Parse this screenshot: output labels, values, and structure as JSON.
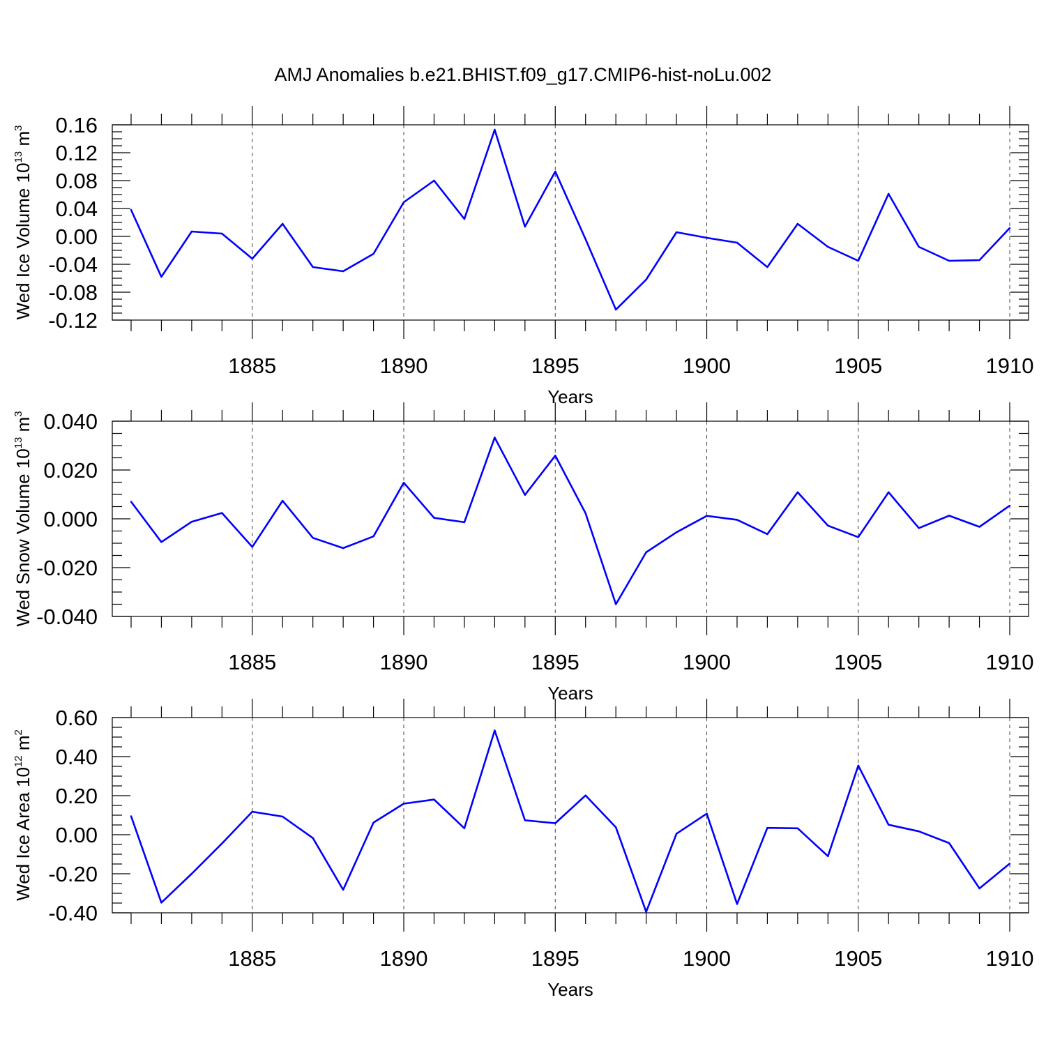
{
  "title": "AMJ Anomalies b.e21.BHIST.f09_g17.CMIP6-hist-noLu.002",
  "colors": {
    "line": "#0000ff",
    "axis": "#000000",
    "grid": "#444444"
  },
  "chart_data": [
    {
      "type": "line",
      "title": "AMJ Anomalies b.e21.BHIST.f09_g17.CMIP6-hist-noLu.002",
      "xlabel": "Years",
      "ylabel": "Wed Ice Volume 10",
      "ylabel_exponent": "13",
      "ylabel_unit": "m",
      "ylabel_unit_exponent": "3",
      "xlim": [
        1881,
        1910
      ],
      "ylim": [
        -0.12,
        0.16
      ],
      "x_ticks": [
        "1885",
        "1890",
        "1895",
        "1900",
        "1905",
        "1910"
      ],
      "y_ticks": [
        "0.16",
        "0.12",
        "0.08",
        "0.04",
        "0.00",
        "-0.04",
        "-0.08",
        "-0.12"
      ],
      "y_tick_values": [
        0.16,
        0.12,
        0.08,
        0.04,
        0.0,
        -0.04,
        -0.08,
        -0.12
      ],
      "grid": "vertical dashed at labeled years",
      "x": [
        1881,
        1882,
        1883,
        1884,
        1885,
        1886,
        1887,
        1888,
        1889,
        1890,
        1891,
        1892,
        1893,
        1894,
        1895,
        1896,
        1897,
        1898,
        1899,
        1900,
        1901,
        1902,
        1903,
        1904,
        1905,
        1906,
        1907,
        1908,
        1909,
        1910
      ],
      "values": [
        0.038,
        -0.058,
        0.007,
        0.004,
        -0.032,
        0.018,
        -0.044,
        -0.05,
        -0.025,
        0.049,
        0.08,
        0.025,
        0.153,
        0.014,
        0.093,
        -0.004,
        -0.105,
        -0.062,
        0.006,
        -0.002,
        -0.009,
        -0.044,
        0.018,
        -0.015,
        -0.035,
        0.061,
        -0.015,
        -0.035,
        -0.034,
        0.012
      ]
    },
    {
      "type": "line",
      "xlabel": "Years",
      "ylabel": "Wed Snow Volume 10",
      "ylabel_exponent": "13",
      "ylabel_unit": "m",
      "ylabel_unit_exponent": "3",
      "xlim": [
        1881,
        1910
      ],
      "ylim": [
        -0.04,
        0.04
      ],
      "x_ticks": [
        "1885",
        "1890",
        "1895",
        "1900",
        "1905",
        "1910"
      ],
      "y_ticks": [
        "0.040",
        "0.020",
        "0.000",
        "-0.020",
        "-0.040"
      ],
      "y_tick_values": [
        0.04,
        0.02,
        0.0,
        -0.02,
        -0.04
      ],
      "grid": "vertical dashed at labeled years",
      "x": [
        1881,
        1882,
        1883,
        1884,
        1885,
        1886,
        1887,
        1888,
        1889,
        1890,
        1891,
        1892,
        1893,
        1894,
        1895,
        1896,
        1897,
        1898,
        1899,
        1900,
        1901,
        1902,
        1903,
        1904,
        1905,
        1906,
        1907,
        1908,
        1909,
        1910
      ],
      "values": [
        0.007,
        -0.0095,
        -0.0012,
        0.0024,
        -0.0115,
        0.0074,
        -0.0078,
        -0.012,
        -0.0072,
        0.0148,
        0.0004,
        -0.0014,
        0.0333,
        0.0098,
        0.0259,
        0.0023,
        -0.035,
        -0.0137,
        -0.0055,
        0.0012,
        -0.0004,
        -0.0063,
        0.0109,
        -0.0028,
        -0.0075,
        0.0109,
        -0.0038,
        0.0013,
        -0.0033,
        0.0054
      ]
    },
    {
      "type": "line",
      "xlabel": "Years",
      "ylabel": "Wed Ice Area 10",
      "ylabel_exponent": "12",
      "ylabel_unit": "m",
      "ylabel_unit_exponent": "2",
      "xlim": [
        1881,
        1910
      ],
      "ylim": [
        -0.4,
        0.6
      ],
      "x_ticks": [
        "1885",
        "1890",
        "1895",
        "1900",
        "1905",
        "1910"
      ],
      "y_ticks": [
        "0.60",
        "0.40",
        "0.20",
        "0.00",
        "-0.20",
        "-0.40"
      ],
      "y_tick_values": [
        0.6,
        0.4,
        0.2,
        0.0,
        -0.2,
        -0.4
      ],
      "grid": "vertical dashed at labeled years",
      "x": [
        1881,
        1882,
        1883,
        1884,
        1885,
        1886,
        1887,
        1888,
        1889,
        1890,
        1891,
        1892,
        1893,
        1894,
        1895,
        1896,
        1897,
        1898,
        1899,
        1900,
        1901,
        1902,
        1903,
        1904,
        1905,
        1906,
        1907,
        1908,
        1909,
        1910
      ],
      "values": [
        0.095,
        -0.348,
        -0.2,
        -0.045,
        0.118,
        0.093,
        -0.017,
        -0.282,
        0.062,
        0.159,
        0.18,
        0.033,
        0.534,
        0.074,
        0.059,
        0.201,
        0.038,
        -0.395,
        0.005,
        0.108,
        -0.355,
        0.035,
        0.033,
        -0.11,
        0.354,
        0.051,
        0.017,
        -0.043,
        -0.275,
        -0.148
      ]
    }
  ]
}
